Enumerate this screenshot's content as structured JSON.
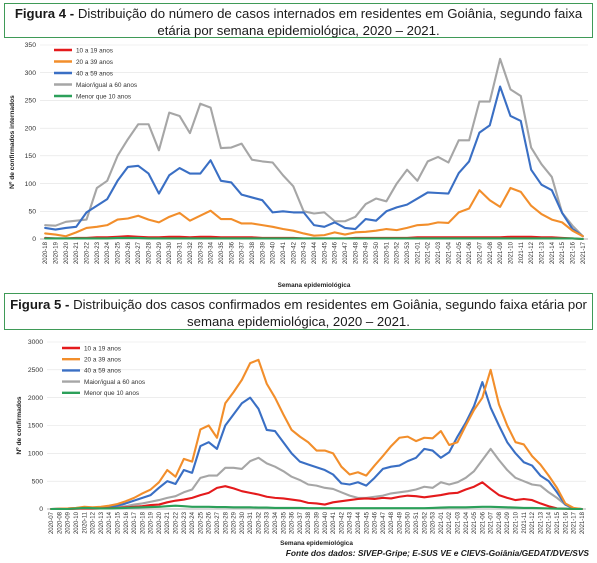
{
  "captions": {
    "fig4_label": "Figura 4 -",
    "fig4_text": " Distribuição do número de casos internados em residentes em Goiânia, segundo faixa etária por semana epidemiológica, 2020 – 2021.",
    "fig5_label": "Figura 5 -",
    "fig5_text": " Distribuição dos casos confirmados em residentes em Goiânia, segundo faixa etária por semana epidemiológica, 2020 – 2021."
  },
  "source": "Fonte dos dados: SIVEP-Gripe; E-SUS VE e CIEVS-Goiânia/GEDAT/DVE/SVS",
  "colors": {
    "10 a 19 anos": "#e41a1c",
    "20 a 39 anos": "#f28e2b",
    "40 a 59 anos": "#3a6fc4",
    "Maior/igual a 60 anos": "#a6a6a6",
    "Menor que 10 anos": "#2ca05a"
  },
  "chart_data": [
    {
      "type": "line",
      "title": "",
      "xlabel": "Semana epidemiológica",
      "ylabel": "Nº de confirmados internados",
      "ylim": [
        0,
        350
      ],
      "yticks": [
        0,
        50,
        100,
        150,
        200,
        250,
        300,
        350
      ],
      "grid": "horizontal",
      "legend": "top-left",
      "x": [
        "2020-18",
        "2020-19",
        "2020-20",
        "2020-21",
        "2020-22",
        "2020-23",
        "2020-24",
        "2020-25",
        "2020-26",
        "2020-27",
        "2020-28",
        "2020-29",
        "2020-30",
        "2020-31",
        "2020-32",
        "2020-33",
        "2020-34",
        "2020-35",
        "2020-36",
        "2020-37",
        "2020-38",
        "2020-39",
        "2020-40",
        "2020-41",
        "2020-42",
        "2020-43",
        "2020-44",
        "2020-45",
        "2020-46",
        "2020-47",
        "2020-48",
        "2020-49",
        "2020-50",
        "2020-51",
        "2020-52",
        "2020-53",
        "2021-01",
        "2021-02",
        "2021-03",
        "2021-04",
        "2021-05",
        "2021-06",
        "2021-07",
        "2021-08",
        "2021-09",
        "2021-10",
        "2021-11",
        "2021-12",
        "2021-13",
        "2021-14",
        "2021-15",
        "2021-16",
        "2021-17"
      ],
      "xticks": [
        "2020-18",
        "2020-19",
        "2020-20",
        "2020-21",
        "2020-22",
        "2020-23",
        "2020-24",
        "2020-25",
        "2020-26",
        "2020-27",
        "2020-28",
        "2020-29",
        "2020-30",
        "2020-31",
        "2020-32",
        "2020-33",
        "2020-34",
        "2020-35",
        "2020-36",
        "2020-37",
        "2020-38",
        "2020-39",
        "2020-40",
        "2020-41",
        "2020-42",
        "2020-43",
        "2020-44",
        "2020-45",
        "2020-46",
        "2020-47",
        "2020-48",
        "2020-49",
        "2020-50",
        "2020-51",
        "2020-52",
        "2020-53",
        "2021-01",
        "2021-02",
        "2021-03",
        "2021-04",
        "2021-05",
        "2021-06",
        "2021-07",
        "2021-08",
        "2021-09",
        "2021-10",
        "2021-11",
        "2021-12",
        "2021-13",
        "2021-14",
        "2021-15",
        "2021-16",
        "2021-17"
      ],
      "series": [
        {
          "name": "10 a 19 anos",
          "values": [
            2,
            1,
            1,
            2,
            2,
            3,
            3,
            4,
            5,
            4,
            3,
            3,
            4,
            4,
            3,
            4,
            4,
            3,
            3,
            3,
            3,
            2,
            2,
            2,
            2,
            1,
            1,
            1,
            1,
            1,
            2,
            2,
            2,
            2,
            2,
            2,
            3,
            3,
            3,
            3,
            3,
            3,
            3,
            3,
            3,
            4,
            4,
            4,
            3,
            3,
            2,
            1,
            0
          ]
        },
        {
          "name": "20 a 39 anos",
          "values": [
            10,
            8,
            5,
            12,
            20,
            22,
            25,
            35,
            37,
            42,
            35,
            30,
            40,
            47,
            33,
            42,
            51,
            36,
            36,
            28,
            28,
            25,
            22,
            18,
            15,
            10,
            6,
            7,
            12,
            8,
            12,
            13,
            15,
            18,
            16,
            20,
            25,
            26,
            30,
            29,
            48,
            55,
            88,
            70,
            58,
            92,
            85,
            60,
            45,
            35,
            30,
            15,
            5
          ]
        },
        {
          "name": "40 a 59 anos",
          "values": [
            20,
            17,
            20,
            22,
            48,
            60,
            72,
            105,
            130,
            132,
            118,
            82,
            115,
            128,
            118,
            118,
            142,
            105,
            102,
            80,
            75,
            70,
            48,
            50,
            48,
            48,
            25,
            22,
            30,
            20,
            18,
            36,
            33,
            50,
            57,
            62,
            73,
            84,
            83,
            82,
            119,
            140,
            192,
            205,
            275,
            222,
            213,
            125,
            98,
            88,
            47,
            18,
            5
          ]
        },
        {
          "name": "Maior/igual a 60 anos",
          "values": [
            25,
            24,
            31,
            33,
            35,
            92,
            105,
            150,
            180,
            207,
            207,
            160,
            228,
            222,
            191,
            244,
            237,
            164,
            165,
            172,
            143,
            140,
            138,
            115,
            95,
            50,
            46,
            48,
            32,
            32,
            40,
            63,
            73,
            68,
            100,
            125,
            105,
            140,
            148,
            138,
            178,
            178,
            248,
            248,
            325,
            270,
            258,
            165,
            135,
            112,
            47,
            24,
            5
          ]
        },
        {
          "name": "Menor que 10 anos",
          "values": [
            1,
            1,
            1,
            1,
            1,
            1,
            1,
            2,
            2,
            2,
            1,
            1,
            1,
            1,
            1,
            1,
            1,
            1,
            1,
            1,
            1,
            1,
            1,
            1,
            1,
            1,
            1,
            1,
            1,
            1,
            1,
            1,
            1,
            1,
            1,
            1,
            1,
            1,
            1,
            1,
            1,
            1,
            1,
            1,
            1,
            1,
            1,
            1,
            1,
            1,
            1,
            1,
            0
          ]
        }
      ]
    },
    {
      "type": "line",
      "title": "",
      "xlabel": "Semana epidemiológica",
      "ylabel": "Nº de confirmados",
      "ylim": [
        0,
        3000
      ],
      "yticks": [
        0,
        500,
        1000,
        1500,
        2000,
        2500,
        3000
      ],
      "grid": "horizontal",
      "legend": "top-left",
      "x": [
        "2020-07",
        "2020-08",
        "2020-09",
        "2020-10",
        "2020-11",
        "2020-12",
        "2020-13",
        "2020-14",
        "2020-15",
        "2020-16",
        "2020-17",
        "2020-18",
        "2020-19",
        "2020-20",
        "2020-21",
        "2020-22",
        "2020-23",
        "2020-24",
        "2020-25",
        "2020-26",
        "2020-27",
        "2020-28",
        "2020-29",
        "2020-30",
        "2020-31",
        "2020-32",
        "2020-33",
        "2020-34",
        "2020-35",
        "2020-36",
        "2020-37",
        "2020-38",
        "2020-39",
        "2020-40",
        "2020-41",
        "2020-42",
        "2020-43",
        "2020-44",
        "2020-45",
        "2020-46",
        "2020-47",
        "2020-48",
        "2020-49",
        "2020-50",
        "2020-51",
        "2020-52",
        "2020-53",
        "2021-01",
        "2021-02",
        "2021-03",
        "2021-04",
        "2021-05",
        "2021-06",
        "2021-07",
        "2021-08",
        "2021-09",
        "2021-10",
        "2021-11",
        "2021-12",
        "2021-13",
        "2021-14",
        "2021-15",
        "2021-16",
        "2021-17",
        "2021-18"
      ],
      "xticks": [
        "2020-07",
        "2020-08",
        "2020-09",
        "2020-10",
        "2020-11",
        "2020-12",
        "2020-13",
        "2020-14",
        "2020-15",
        "2020-16",
        "2020-17",
        "2020-18",
        "2020-19",
        "2020-20",
        "2020-21",
        "2020-22",
        "2020-23",
        "2020-24",
        "2020-25",
        "2020-26",
        "2020-27",
        "2020-28",
        "2020-29",
        "2020-30",
        "2020-31",
        "2020-32",
        "2020-33",
        "2020-34",
        "2020-35",
        "2020-36",
        "2020-37",
        "2020-38",
        "2020-39",
        "2020-40",
        "2020-41",
        "2020-42",
        "2020-43",
        "2020-44",
        "2020-45",
        "2020-46",
        "2020-47",
        "2020-48",
        "2020-49",
        "2020-50",
        "2020-51",
        "2020-52",
        "2020-53",
        "2021-01",
        "2021-02",
        "2021-03",
        "2021-04",
        "2021-05",
        "2021-06",
        "2021-07",
        "2021-08",
        "2021-09",
        "2021-10",
        "2021-11",
        "2021-12",
        "2021-13",
        "2021-14",
        "2021-15",
        "2021-16",
        "2021-17",
        "2021-18"
      ],
      "series": [
        {
          "name": "10 a 19 anos",
          "values": [
            0,
            0,
            0,
            5,
            10,
            8,
            10,
            15,
            20,
            30,
            40,
            50,
            70,
            80,
            120,
            150,
            170,
            200,
            250,
            290,
            380,
            410,
            370,
            320,
            290,
            260,
            220,
            200,
            190,
            170,
            150,
            110,
            100,
            80,
            120,
            140,
            160,
            180,
            190,
            180,
            200,
            190,
            220,
            240,
            230,
            210,
            230,
            250,
            280,
            290,
            350,
            400,
            480,
            360,
            250,
            200,
            160,
            180,
            160,
            100,
            50,
            10,
            5,
            0,
            0
          ]
        },
        {
          "name": "20 a 39 anos",
          "values": [
            0,
            5,
            10,
            20,
            40,
            30,
            40,
            60,
            90,
            140,
            200,
            280,
            350,
            480,
            700,
            580,
            900,
            850,
            1430,
            1500,
            1280,
            1900,
            2100,
            2320,
            2620,
            2680,
            2250,
            2000,
            1700,
            1420,
            1300,
            1200,
            1050,
            1050,
            1000,
            760,
            620,
            660,
            600,
            780,
            950,
            1130,
            1280,
            1300,
            1220,
            1280,
            1270,
            1400,
            1150,
            1200,
            1500,
            1780,
            2000,
            2500,
            1880,
            1500,
            1200,
            1160,
            950,
            800,
            600,
            380,
            100,
            20,
            0
          ]
        },
        {
          "name": "40 a 59 anos",
          "values": [
            0,
            5,
            8,
            15,
            30,
            20,
            25,
            40,
            60,
            100,
            150,
            200,
            250,
            380,
            500,
            450,
            700,
            650,
            1130,
            1200,
            1080,
            1500,
            1700,
            1900,
            2000,
            1800,
            1420,
            1400,
            1200,
            1000,
            850,
            800,
            750,
            700,
            620,
            460,
            440,
            480,
            420,
            560,
            720,
            760,
            780,
            860,
            920,
            1080,
            1050,
            920,
            1020,
            1300,
            1550,
            1850,
            2280,
            1820,
            1500,
            1200,
            1000,
            840,
            780,
            600,
            500,
            300,
            80,
            10,
            0
          ]
        },
        {
          "name": "Maior/igual a 60 anos",
          "values": [
            0,
            0,
            0,
            5,
            10,
            8,
            10,
            20,
            30,
            50,
            80,
            100,
            130,
            160,
            200,
            230,
            300,
            350,
            560,
            600,
            600,
            740,
            740,
            720,
            860,
            920,
            820,
            760,
            680,
            580,
            520,
            440,
            420,
            380,
            360,
            300,
            240,
            200,
            200,
            220,
            240,
            280,
            300,
            320,
            350,
            400,
            380,
            480,
            440,
            480,
            560,
            680,
            880,
            1080,
            880,
            700,
            560,
            500,
            440,
            420,
            300,
            200,
            80,
            10,
            0
          ]
        },
        {
          "name": "Menor que 10 anos",
          "values": [
            0,
            0,
            0,
            10,
            20,
            15,
            10,
            10,
            15,
            20,
            25,
            30,
            35,
            40,
            50,
            60,
            50,
            40,
            40,
            40,
            35,
            35,
            30,
            30,
            30,
            25,
            25,
            20,
            20,
            20,
            20,
            15,
            15,
            15,
            15,
            15,
            15,
            15,
            15,
            15,
            15,
            15,
            15,
            15,
            15,
            15,
            20,
            25,
            30,
            30,
            30,
            35,
            40,
            40,
            35,
            30,
            25,
            20,
            20,
            15,
            10,
            5,
            5,
            0,
            0
          ]
        }
      ]
    }
  ]
}
